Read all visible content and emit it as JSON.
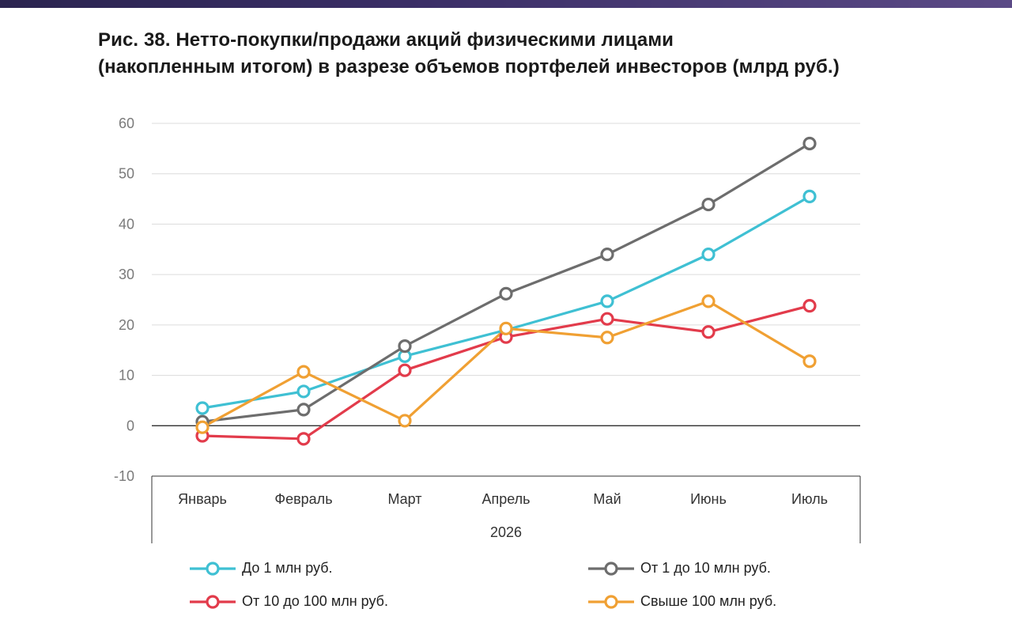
{
  "figure": {
    "title_line1": "Рис. 38. Нетто-покупки/продажи акций физическими лицами",
    "title_line2": "(накопленным итогом) в разрезе объемов портфелей инвесторов (млрд руб.)"
  },
  "chart_data": {
    "type": "line",
    "title": "Рис. 38. Нетто-покупки/продажи акций физическими лицами (накопленным итогом) в разрезе объемов портфелей инвесторов (млрд руб.)",
    "categories": [
      "Январь",
      "Февраль",
      "Март",
      "Апрель",
      "Май",
      "Июнь",
      "Июль"
    ],
    "category_group": "2026",
    "ylim": [
      -10,
      60
    ],
    "yticks": [
      -10,
      0,
      10,
      20,
      30,
      40,
      50,
      60
    ],
    "grid": true,
    "legend_position": "bottom",
    "series": [
      {
        "name": "До 1 млн руб.",
        "color": "#3fc0d3",
        "values": [
          3.5,
          6.8,
          13.8,
          19.0,
          24.7,
          34.0,
          45.5
        ]
      },
      {
        "name": "От 1 до 10 млн руб.",
        "color": "#6d6d6d",
        "values": [
          0.8,
          3.2,
          15.8,
          26.2,
          34.0,
          43.9,
          56.0
        ]
      },
      {
        "name": "От 10 до 100 млн руб.",
        "color": "#e23b4b",
        "values": [
          -2.0,
          -2.6,
          11.0,
          17.6,
          21.2,
          18.6,
          23.8
        ]
      },
      {
        "name": "Свыше 100 млн руб.",
        "color": "#f0a033",
        "values": [
          -0.3,
          10.7,
          1.0,
          19.3,
          17.5,
          24.7,
          12.8
        ]
      }
    ]
  }
}
